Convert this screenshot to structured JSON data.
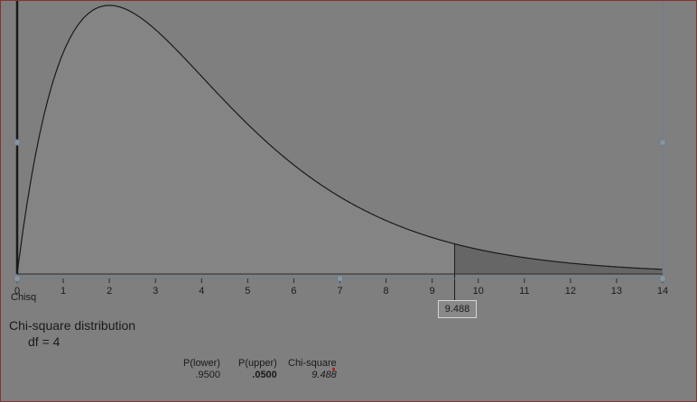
{
  "distribution": {
    "title": "Chi-square distribution",
    "df_label": "df = 4",
    "variable": "Chisq"
  },
  "critical_value_label": "9.488",
  "results": {
    "p_lower_header": "P(lower)",
    "p_lower_value": ".9500",
    "p_upper_header": "P(upper)",
    "p_upper_value": ".0500",
    "chisq_header": "Chi-square",
    "chisq_value": "9.488"
  },
  "chart_data": {
    "type": "area",
    "distribution": "chi-square",
    "df": 4,
    "critical_value": 9.488,
    "shaded_region": "upper",
    "xlim": [
      0,
      14
    ],
    "x_ticks": [
      0,
      1,
      2,
      3,
      4,
      5,
      6,
      7,
      8,
      9,
      10,
      11,
      12,
      13,
      14
    ],
    "xlabel": "Chisq",
    "colors": {
      "curve": "#1a1a1a",
      "shaded": "#666666",
      "axis": "#2a2a2a",
      "handle": "#6a7e8e"
    }
  }
}
